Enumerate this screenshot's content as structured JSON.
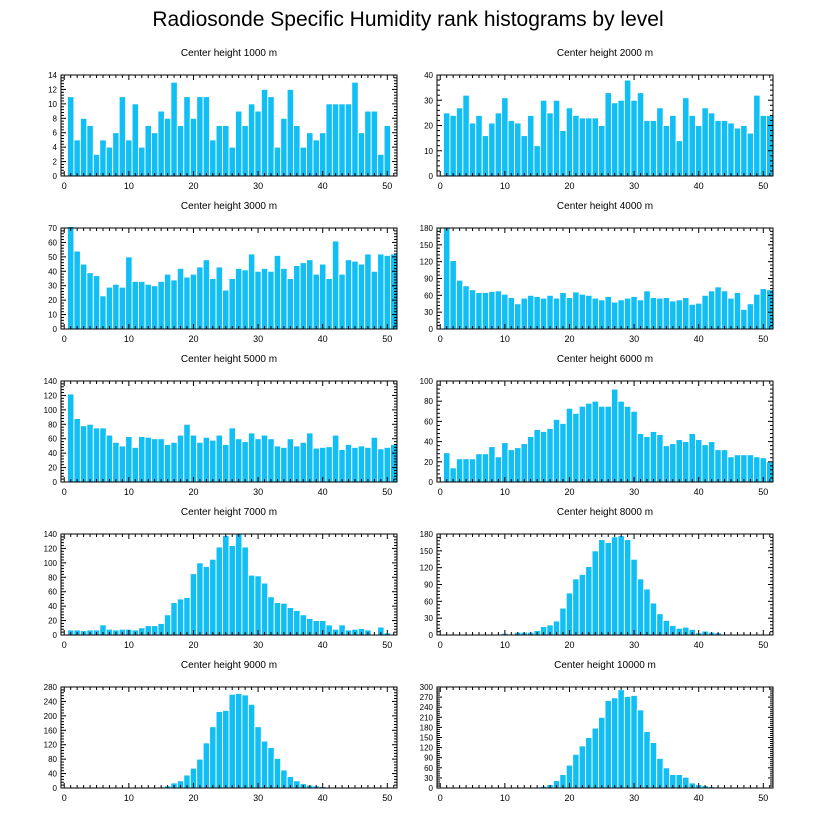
{
  "figure": {
    "title": "Radiosonde Specific Humidity rank histograms by level",
    "bar_color": "#11BFF5"
  },
  "chart_data": [
    {
      "type": "bar",
      "title": "Center height 1000 m",
      "xlim": [
        -0.5,
        51.5
      ],
      "ylim": [
        0,
        14
      ],
      "xticks": [
        0,
        10,
        20,
        30,
        40,
        50
      ],
      "yticks": [
        0,
        2,
        4,
        6,
        8,
        10,
        12,
        14
      ],
      "categories": [
        1,
        2,
        3,
        4,
        5,
        6,
        7,
        8,
        9,
        10,
        11,
        12,
        13,
        14,
        15,
        16,
        17,
        18,
        19,
        20,
        21,
        22,
        23,
        24,
        25,
        26,
        27,
        28,
        29,
        30,
        31,
        32,
        33,
        34,
        35,
        36,
        37,
        38,
        39,
        40,
        41,
        42,
        43,
        44,
        45,
        46,
        47,
        48,
        49,
        50,
        51
      ],
      "values": [
        11,
        5,
        8,
        7,
        3,
        5,
        4,
        6,
        11,
        5,
        10,
        4,
        7,
        6,
        9,
        8,
        13,
        7,
        11,
        8,
        11,
        11,
        5,
        7,
        7,
        4,
        9,
        7,
        10,
        9,
        12,
        11,
        4,
        8,
        12,
        7,
        4,
        6,
        5,
        6,
        10,
        10,
        10,
        10,
        13,
        6,
        9,
        9,
        3,
        7,
        0
      ]
    },
    {
      "type": "bar",
      "title": "Center height 2000 m",
      "xlim": [
        -0.5,
        51.5
      ],
      "ylim": [
        0,
        40
      ],
      "xticks": [
        0,
        10,
        20,
        30,
        40,
        50
      ],
      "yticks": [
        0,
        10,
        20,
        30,
        40
      ],
      "categories": [
        1,
        2,
        3,
        4,
        5,
        6,
        7,
        8,
        9,
        10,
        11,
        12,
        13,
        14,
        15,
        16,
        17,
        18,
        19,
        20,
        21,
        22,
        23,
        24,
        25,
        26,
        27,
        28,
        29,
        30,
        31,
        32,
        33,
        34,
        35,
        36,
        37,
        38,
        39,
        40,
        41,
        42,
        43,
        44,
        45,
        46,
        47,
        48,
        49,
        50,
        51
      ],
      "values": [
        25,
        24,
        27,
        32,
        21,
        24,
        16,
        21,
        25,
        31,
        22,
        21,
        16,
        24,
        12,
        30,
        25,
        30,
        18,
        27,
        24,
        23,
        23,
        23,
        20,
        33,
        29,
        30,
        38,
        30,
        33,
        22,
        22,
        27,
        20,
        24,
        14,
        31,
        24,
        20,
        27,
        25,
        22,
        22,
        21,
        19,
        20,
        17,
        32,
        24,
        24
      ]
    },
    {
      "type": "bar",
      "title": "Center height 3000 m",
      "xlim": [
        -0.5,
        51.5
      ],
      "ylim": [
        0,
        70
      ],
      "xticks": [
        0,
        10,
        20,
        30,
        40,
        50
      ],
      "yticks": [
        0,
        10,
        20,
        30,
        40,
        50,
        60,
        70
      ],
      "categories": [
        1,
        2,
        3,
        4,
        5,
        6,
        7,
        8,
        9,
        10,
        11,
        12,
        13,
        14,
        15,
        16,
        17,
        18,
        19,
        20,
        21,
        22,
        23,
        24,
        25,
        26,
        27,
        28,
        29,
        30,
        31,
        32,
        33,
        34,
        35,
        36,
        37,
        38,
        39,
        40,
        41,
        42,
        43,
        44,
        45,
        46,
        47,
        48,
        49,
        50,
        51
      ],
      "values": [
        71,
        54,
        45,
        39,
        37,
        23,
        29,
        31,
        29,
        50,
        33,
        33,
        31,
        30,
        33,
        38,
        34,
        42,
        36,
        38,
        43,
        48,
        35,
        43,
        27,
        35,
        42,
        41,
        52,
        40,
        42,
        40,
        51,
        42,
        35,
        44,
        46,
        48,
        38,
        45,
        35,
        61,
        38,
        48,
        47,
        45,
        52,
        40,
        52,
        51,
        52
      ]
    },
    {
      "type": "bar",
      "title": "Center height 4000 m",
      "xlim": [
        -0.5,
        51.5
      ],
      "ylim": [
        0,
        180
      ],
      "xticks": [
        0,
        10,
        20,
        30,
        40,
        50
      ],
      "yticks": [
        0,
        30,
        60,
        90,
        120,
        150,
        180
      ],
      "categories": [
        1,
        2,
        3,
        4,
        5,
        6,
        7,
        8,
        9,
        10,
        11,
        12,
        13,
        14,
        15,
        16,
        17,
        18,
        19,
        20,
        21,
        22,
        23,
        24,
        25,
        26,
        27,
        28,
        29,
        30,
        31,
        32,
        33,
        34,
        35,
        36,
        37,
        38,
        39,
        40,
        41,
        42,
        43,
        44,
        45,
        46,
        47,
        48,
        49,
        50,
        51
      ],
      "values": [
        180,
        122,
        87,
        77,
        70,
        65,
        65,
        67,
        68,
        62,
        56,
        45,
        55,
        60,
        58,
        55,
        60,
        55,
        65,
        56,
        66,
        62,
        60,
        55,
        52,
        58,
        48,
        52,
        55,
        58,
        52,
        68,
        56,
        55,
        56,
        50,
        52,
        56,
        44,
        46,
        60,
        68,
        75,
        68,
        55,
        65,
        35,
        45,
        62,
        72,
        70
      ]
    },
    {
      "type": "bar",
      "title": "Center height 5000 m",
      "xlim": [
        -0.5,
        51.5
      ],
      "ylim": [
        0,
        140
      ],
      "xticks": [
        0,
        10,
        20,
        30,
        40,
        50
      ],
      "yticks": [
        0,
        20,
        40,
        60,
        80,
        100,
        120,
        140
      ],
      "categories": [
        1,
        2,
        3,
        4,
        5,
        6,
        7,
        8,
        9,
        10,
        11,
        12,
        13,
        14,
        15,
        16,
        17,
        18,
        19,
        20,
        21,
        22,
        23,
        24,
        25,
        26,
        27,
        28,
        29,
        30,
        31,
        32,
        33,
        34,
        35,
        36,
        37,
        38,
        39,
        40,
        41,
        42,
        43,
        44,
        45,
        46,
        47,
        48,
        49,
        50,
        51
      ],
      "values": [
        122,
        88,
        78,
        80,
        75,
        75,
        65,
        55,
        50,
        63,
        48,
        63,
        62,
        60,
        60,
        52,
        55,
        65,
        80,
        65,
        55,
        62,
        58,
        65,
        52,
        75,
        60,
        56,
        68,
        60,
        65,
        60,
        50,
        48,
        60,
        50,
        55,
        68,
        47,
        48,
        49,
        65,
        45,
        52,
        48,
        50,
        48,
        62,
        46,
        48,
        52
      ]
    },
    {
      "type": "bar",
      "title": "Center height 6000 m",
      "xlim": [
        -0.5,
        51.5
      ],
      "ylim": [
        0,
        100
      ],
      "xticks": [
        0,
        10,
        20,
        30,
        40,
        50
      ],
      "yticks": [
        0,
        20,
        40,
        60,
        80,
        100
      ],
      "categories": [
        1,
        2,
        3,
        4,
        5,
        6,
        7,
        8,
        9,
        10,
        11,
        12,
        13,
        14,
        15,
        16,
        17,
        18,
        19,
        20,
        21,
        22,
        23,
        24,
        25,
        26,
        27,
        28,
        29,
        30,
        31,
        32,
        33,
        34,
        35,
        36,
        37,
        38,
        39,
        40,
        41,
        42,
        43,
        44,
        45,
        46,
        47,
        48,
        49,
        50,
        51
      ],
      "values": [
        29,
        14,
        23,
        23,
        23,
        28,
        28,
        35,
        25,
        39,
        32,
        34,
        38,
        45,
        52,
        50,
        53,
        62,
        58,
        73,
        68,
        75,
        78,
        80,
        75,
        75,
        92,
        80,
        75,
        70,
        48,
        45,
        50,
        47,
        36,
        38,
        42,
        40,
        48,
        42,
        37,
        40,
        32,
        32,
        25,
        27,
        27,
        27,
        25,
        24,
        20
      ]
    },
    {
      "type": "bar",
      "title": "Center height 7000 m",
      "xlim": [
        -0.5,
        51.5
      ],
      "ylim": [
        0,
        140
      ],
      "xticks": [
        0,
        10,
        20,
        30,
        40,
        50
      ],
      "yticks": [
        0,
        20,
        40,
        60,
        80,
        100,
        120,
        140
      ],
      "categories": [
        1,
        2,
        3,
        4,
        5,
        6,
        7,
        8,
        9,
        10,
        11,
        12,
        13,
        14,
        15,
        16,
        17,
        18,
        19,
        20,
        21,
        22,
        23,
        24,
        25,
        26,
        27,
        28,
        29,
        30,
        31,
        32,
        33,
        34,
        35,
        36,
        37,
        38,
        39,
        40,
        41,
        42,
        43,
        44,
        45,
        46,
        47,
        48,
        49,
        50,
        51
      ],
      "values": [
        7,
        7,
        6,
        7,
        7,
        14,
        8,
        7,
        8,
        8,
        7,
        10,
        13,
        13,
        16,
        28,
        45,
        50,
        52,
        85,
        100,
        95,
        105,
        122,
        138,
        124,
        140,
        122,
        83,
        82,
        72,
        53,
        45,
        44,
        38,
        34,
        28,
        23,
        20,
        20,
        14,
        8,
        14,
        7,
        8,
        9,
        7,
        1,
        11,
        3,
        0
      ]
    },
    {
      "type": "bar",
      "title": "Center height 8000 m",
      "xlim": [
        -0.5,
        51.5
      ],
      "ylim": [
        0,
        180
      ],
      "xticks": [
        0,
        10,
        20,
        30,
        40,
        50
      ],
      "yticks": [
        0,
        30,
        60,
        90,
        120,
        150,
        180
      ],
      "categories": [
        1,
        2,
        3,
        4,
        5,
        6,
        7,
        8,
        9,
        10,
        11,
        12,
        13,
        14,
        15,
        16,
        17,
        18,
        19,
        20,
        21,
        22,
        23,
        24,
        25,
        26,
        27,
        28,
        29,
        30,
        31,
        32,
        33,
        34,
        35,
        36,
        37,
        38,
        39,
        40,
        41,
        42,
        43,
        44,
        45,
        46,
        47,
        48,
        49,
        50,
        51
      ],
      "values": [
        0,
        0,
        0,
        0,
        0,
        0,
        0,
        0,
        0,
        3,
        0,
        5,
        5,
        5,
        8,
        15,
        18,
        25,
        48,
        75,
        100,
        108,
        122,
        150,
        170,
        165,
        175,
        177,
        170,
        135,
        100,
        82,
        57,
        38,
        26,
        17,
        12,
        14,
        10,
        4,
        7,
        5,
        4,
        0,
        0,
        0,
        0,
        0,
        0,
        0,
        0
      ]
    },
    {
      "type": "bar",
      "title": "Center height 9000 m",
      "xlim": [
        -0.5,
        51.5
      ],
      "ylim": [
        0,
        280
      ],
      "xticks": [
        0,
        10,
        20,
        30,
        40,
        50
      ],
      "yticks": [
        0,
        40,
        80,
        120,
        160,
        200,
        240,
        280
      ],
      "categories": [
        1,
        2,
        3,
        4,
        5,
        6,
        7,
        8,
        9,
        10,
        11,
        12,
        13,
        14,
        15,
        16,
        17,
        18,
        19,
        20,
        21,
        22,
        23,
        24,
        25,
        26,
        27,
        28,
        29,
        30,
        31,
        32,
        33,
        34,
        35,
        36,
        37,
        38,
        39,
        40,
        41,
        42,
        43,
        44,
        45,
        46,
        47,
        48,
        49,
        50,
        51
      ],
      "values": [
        0,
        0,
        0,
        0,
        0,
        0,
        0,
        0,
        0,
        0,
        0,
        0,
        1,
        2,
        3,
        6,
        14,
        20,
        36,
        55,
        80,
        125,
        170,
        212,
        215,
        260,
        262,
        258,
        232,
        170,
        130,
        112,
        82,
        50,
        32,
        20,
        12,
        8,
        6,
        4,
        2,
        1,
        0,
        0,
        0,
        0,
        0,
        0,
        0,
        0,
        0
      ]
    },
    {
      "type": "bar",
      "title": "Center height 10000 m",
      "xlim": [
        -0.5,
        51.5
      ],
      "ylim": [
        0,
        300
      ],
      "xticks": [
        0,
        10,
        20,
        30,
        40,
        50
      ],
      "yticks": [
        0,
        30,
        60,
        90,
        120,
        150,
        180,
        210,
        240,
        270,
        300
      ],
      "categories": [
        1,
        2,
        3,
        4,
        5,
        6,
        7,
        8,
        9,
        10,
        11,
        12,
        13,
        14,
        15,
        16,
        17,
        18,
        19,
        20,
        21,
        22,
        23,
        24,
        25,
        26,
        27,
        28,
        29,
        30,
        31,
        32,
        33,
        34,
        35,
        36,
        37,
        38,
        39,
        40,
        41,
        42,
        43,
        44,
        45,
        46,
        47,
        48,
        49,
        50,
        51
      ],
      "values": [
        0,
        0,
        0,
        0,
        0,
        0,
        0,
        0,
        0,
        0,
        0,
        0,
        0,
        0,
        2,
        5,
        10,
        22,
        40,
        68,
        100,
        125,
        150,
        178,
        210,
        260,
        268,
        292,
        272,
        275,
        232,
        168,
        135,
        88,
        60,
        40,
        40,
        32,
        15,
        10,
        7,
        4,
        2,
        0,
        0,
        0,
        0,
        0,
        0,
        0,
        0
      ]
    }
  ]
}
